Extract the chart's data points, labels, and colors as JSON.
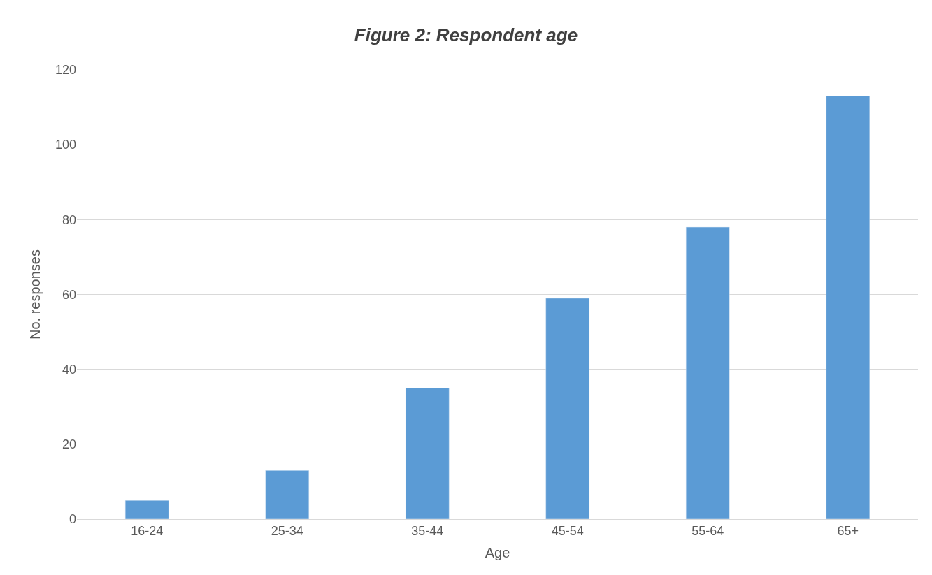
{
  "chart_data": {
    "type": "bar",
    "title": "Figure 2: Respondent age",
    "xlabel": "Age",
    "ylabel": "No. responses",
    "categories": [
      "16-24",
      "25-34",
      "35-44",
      "45-54",
      "55-64",
      "65+"
    ],
    "values": [
      5,
      13,
      35,
      59,
      78,
      113
    ],
    "color": "#5b9bd5",
    "ylim": [
      0,
      120
    ],
    "yticks": [
      0,
      20,
      40,
      60,
      80,
      100,
      120
    ],
    "grid": "y",
    "legend": false
  }
}
